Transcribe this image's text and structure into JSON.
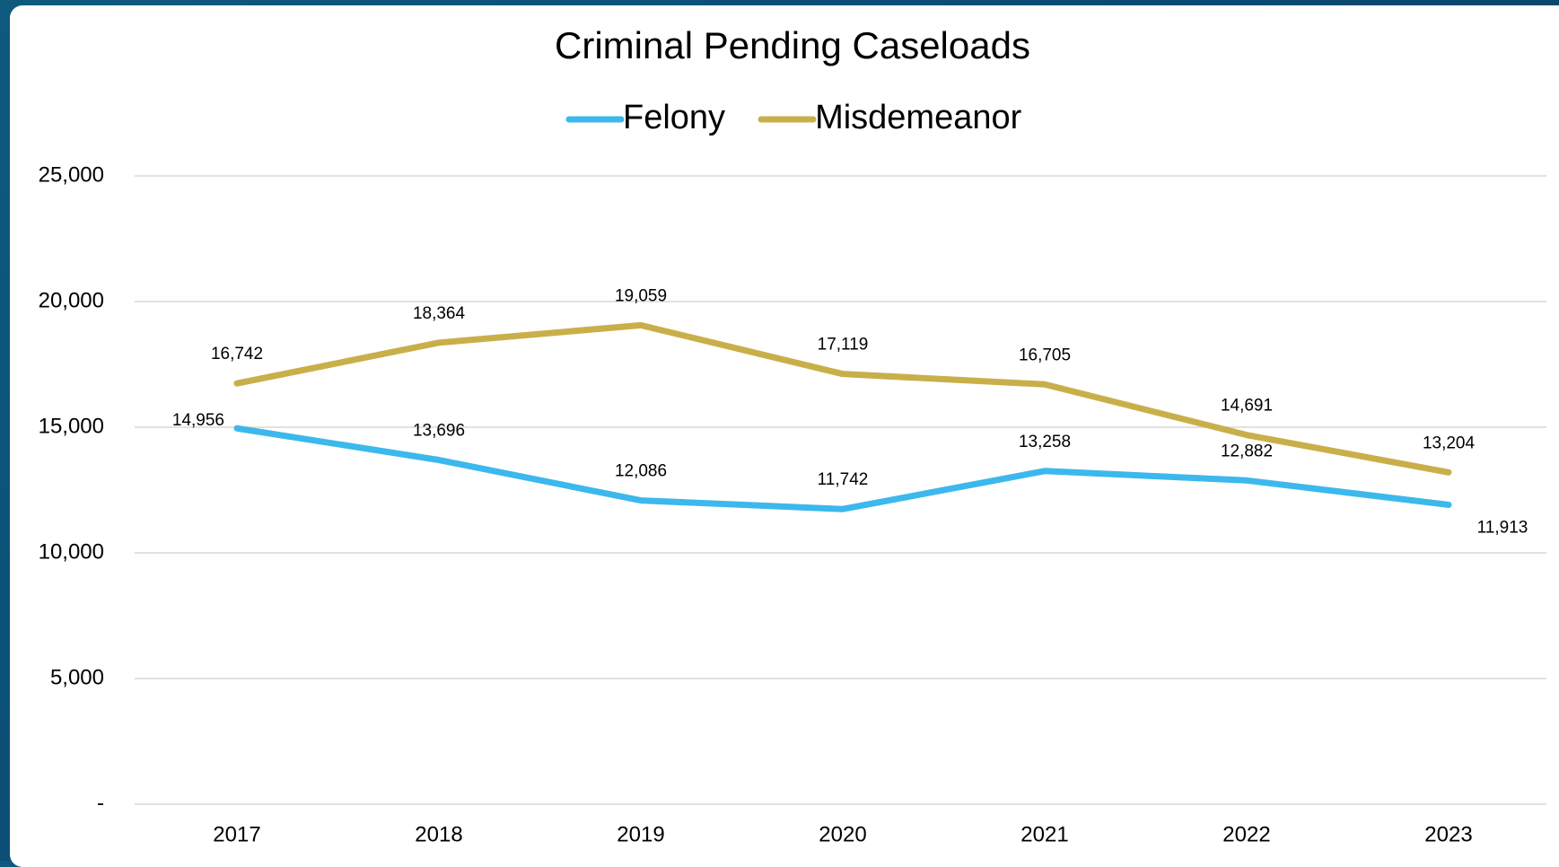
{
  "chart_data": {
    "type": "line",
    "title": "Criminal Pending Caseloads",
    "categories": [
      "2017",
      "2018",
      "2019",
      "2020",
      "2021",
      "2022",
      "2023"
    ],
    "series": [
      {
        "name": "Felony",
        "color": "#3cb8ec",
        "values": [
          14956,
          13696,
          12086,
          11742,
          13258,
          12882,
          11913
        ],
        "value_labels": [
          "14,956",
          "13,696",
          "12,086",
          "11,742",
          "13,258",
          "12,882",
          "11,913"
        ]
      },
      {
        "name": "Misdemeanor",
        "color": "#c8af4a",
        "values": [
          16742,
          18364,
          19059,
          17119,
          16705,
          14691,
          13204
        ],
        "value_labels": [
          "16,742",
          "18,364",
          "19,059",
          "17,119",
          "16,705",
          "14,691",
          "13,204"
        ]
      }
    ],
    "ylim": [
      0,
      25000
    ],
    "yticks": [
      {
        "value": 0,
        "label": "-"
      },
      {
        "value": 5000,
        "label": "5,000"
      },
      {
        "value": 10000,
        "label": "10,000"
      },
      {
        "value": 15000,
        "label": "15,000"
      },
      {
        "value": 20000,
        "label": "20,000"
      },
      {
        "value": 25000,
        "label": "25,000"
      }
    ],
    "grid": true,
    "legend": "top"
  }
}
